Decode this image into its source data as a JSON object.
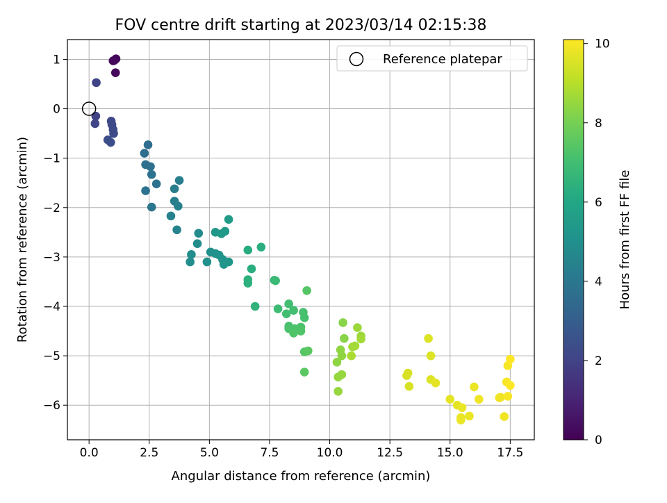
{
  "chart_data": {
    "type": "scatter",
    "title": "FOV centre drift starting at 2023/03/14 02:15:38",
    "xlabel": "Angular distance from reference (arcmin)",
    "ylabel": "Rotation from reference (arcmin)",
    "xlim": [
      -0.9,
      18.5
    ],
    "ylim": [
      -6.7,
      1.4
    ],
    "xticks": [
      0.0,
      2.5,
      5.0,
      7.5,
      10.0,
      12.5,
      15.0,
      17.5
    ],
    "xtick_labels": [
      "0.0",
      "2.5",
      "5.0",
      "7.5",
      "10.0",
      "12.5",
      "15.0",
      "17.5"
    ],
    "yticks": [
      1,
      0,
      -1,
      -2,
      -3,
      -4,
      -5,
      -6
    ],
    "ytick_labels": [
      "1",
      "0",
      "−1",
      "−2",
      "−3",
      "−4",
      "−5",
      "−6"
    ],
    "grid": true,
    "legend": {
      "placement": "top-right",
      "entries": [
        "Reference platepar"
      ]
    },
    "reference_point": {
      "x": 0,
      "y": 0,
      "label": "Reference platepar"
    },
    "colorbar": {
      "label": "Hours from first FF file",
      "colormap": "viridis",
      "range": [
        0,
        10.1
      ],
      "ticks": [
        0,
        2,
        4,
        6,
        8,
        10
      ],
      "tick_labels": [
        "0",
        "2",
        "4",
        "6",
        "8",
        "10"
      ]
    },
    "points": [
      {
        "x": 1.05,
        "y": 0.98,
        "h": 0.1
      },
      {
        "x": 1.12,
        "y": 1.01,
        "h": 0.15
      },
      {
        "x": 1.1,
        "y": 0.73,
        "h": 0.25
      },
      {
        "x": 1.0,
        "y": 0.97,
        "h": 0.2
      },
      {
        "x": 0.3,
        "y": 0.53,
        "h": 2.0
      },
      {
        "x": 0.28,
        "y": -0.15,
        "h": 2.0
      },
      {
        "x": 0.25,
        "y": -0.3,
        "h": 2.1
      },
      {
        "x": 0.92,
        "y": -0.25,
        "h": 2.2
      },
      {
        "x": 0.95,
        "y": -0.32,
        "h": 2.2
      },
      {
        "x": 1.0,
        "y": -0.42,
        "h": 2.3
      },
      {
        "x": 1.02,
        "y": -0.5,
        "h": 2.3
      },
      {
        "x": 0.78,
        "y": -0.63,
        "h": 2.4
      },
      {
        "x": 0.9,
        "y": -0.68,
        "h": 2.4
      },
      {
        "x": 2.45,
        "y": -0.73,
        "h": 3.6
      },
      {
        "x": 2.3,
        "y": -0.9,
        "h": 3.6
      },
      {
        "x": 2.35,
        "y": -1.13,
        "h": 3.7
      },
      {
        "x": 2.55,
        "y": -1.17,
        "h": 3.7
      },
      {
        "x": 2.6,
        "y": -1.33,
        "h": 3.8
      },
      {
        "x": 2.8,
        "y": -1.52,
        "h": 3.8
      },
      {
        "x": 2.35,
        "y": -1.66,
        "h": 3.8
      },
      {
        "x": 2.6,
        "y": -1.99,
        "h": 3.9
      },
      {
        "x": 3.75,
        "y": -1.45,
        "h": 4.3
      },
      {
        "x": 3.55,
        "y": -1.62,
        "h": 4.3
      },
      {
        "x": 3.55,
        "y": -1.87,
        "h": 4.3
      },
      {
        "x": 3.7,
        "y": -1.97,
        "h": 4.4
      },
      {
        "x": 3.4,
        "y": -2.17,
        "h": 4.4
      },
      {
        "x": 3.65,
        "y": -2.45,
        "h": 4.5
      },
      {
        "x": 4.55,
        "y": -2.52,
        "h": 4.8
      },
      {
        "x": 4.5,
        "y": -2.73,
        "h": 4.8
      },
      {
        "x": 4.25,
        "y": -2.95,
        "h": 4.9
      },
      {
        "x": 4.2,
        "y": -3.1,
        "h": 4.9
      },
      {
        "x": 4.9,
        "y": -3.1,
        "h": 5.0
      },
      {
        "x": 5.05,
        "y": -2.9,
        "h": 5.0
      },
      {
        "x": 5.25,
        "y": -2.93,
        "h": 5.1
      },
      {
        "x": 5.4,
        "y": -2.96,
        "h": 5.1
      },
      {
        "x": 5.55,
        "y": -3.05,
        "h": 5.2
      },
      {
        "x": 5.6,
        "y": -3.15,
        "h": 5.2
      },
      {
        "x": 5.8,
        "y": -3.1,
        "h": 5.3
      },
      {
        "x": 5.25,
        "y": -2.5,
        "h": 5.3
      },
      {
        "x": 5.5,
        "y": -2.53,
        "h": 5.4
      },
      {
        "x": 5.65,
        "y": -2.48,
        "h": 5.4
      },
      {
        "x": 5.8,
        "y": -2.24,
        "h": 5.5
      },
      {
        "x": 6.6,
        "y": -2.86,
        "h": 6.2
      },
      {
        "x": 7.15,
        "y": -2.8,
        "h": 6.3
      },
      {
        "x": 6.75,
        "y": -3.24,
        "h": 6.3
      },
      {
        "x": 6.6,
        "y": -3.46,
        "h": 6.4
      },
      {
        "x": 6.6,
        "y": -3.53,
        "h": 6.4
      },
      {
        "x": 6.9,
        "y": -4.0,
        "h": 6.5
      },
      {
        "x": 7.7,
        "y": -3.47,
        "h": 6.8
      },
      {
        "x": 7.75,
        "y": -3.48,
        "h": 6.8
      },
      {
        "x": 7.85,
        "y": -4.05,
        "h": 6.9
      },
      {
        "x": 8.3,
        "y": -3.95,
        "h": 7.0
      },
      {
        "x": 8.5,
        "y": -4.08,
        "h": 7.0
      },
      {
        "x": 8.2,
        "y": -4.15,
        "h": 7.0
      },
      {
        "x": 8.9,
        "y": -4.12,
        "h": 7.1
      },
      {
        "x": 8.95,
        "y": -4.23,
        "h": 7.1
      },
      {
        "x": 8.3,
        "y": -4.4,
        "h": 7.1
      },
      {
        "x": 8.3,
        "y": -4.45,
        "h": 7.2
      },
      {
        "x": 8.55,
        "y": -4.45,
        "h": 7.2
      },
      {
        "x": 8.8,
        "y": -4.42,
        "h": 7.2
      },
      {
        "x": 8.8,
        "y": -4.5,
        "h": 7.3
      },
      {
        "x": 8.5,
        "y": -4.54,
        "h": 7.3
      },
      {
        "x": 9.05,
        "y": -3.68,
        "h": 7.4
      },
      {
        "x": 8.95,
        "y": -4.92,
        "h": 7.4
      },
      {
        "x": 9.1,
        "y": -4.9,
        "h": 7.5
      },
      {
        "x": 8.95,
        "y": -5.33,
        "h": 7.5
      },
      {
        "x": 10.55,
        "y": -4.33,
        "h": 8.3
      },
      {
        "x": 10.6,
        "y": -4.65,
        "h": 8.3
      },
      {
        "x": 10.45,
        "y": -4.88,
        "h": 8.4
      },
      {
        "x": 10.5,
        "y": -5.0,
        "h": 8.4
      },
      {
        "x": 10.3,
        "y": -5.13,
        "h": 8.4
      },
      {
        "x": 10.5,
        "y": -5.38,
        "h": 8.5
      },
      {
        "x": 10.35,
        "y": -5.43,
        "h": 8.5
      },
      {
        "x": 10.35,
        "y": -5.72,
        "h": 8.5
      },
      {
        "x": 11.15,
        "y": -4.43,
        "h": 8.6
      },
      {
        "x": 11.3,
        "y": -4.6,
        "h": 8.6
      },
      {
        "x": 11.3,
        "y": -4.66,
        "h": 8.7
      },
      {
        "x": 11.05,
        "y": -4.8,
        "h": 8.7
      },
      {
        "x": 10.95,
        "y": -4.82,
        "h": 8.7
      },
      {
        "x": 10.9,
        "y": -5.0,
        "h": 8.8
      },
      {
        "x": 13.25,
        "y": -5.35,
        "h": 9.5
      },
      {
        "x": 13.2,
        "y": -5.4,
        "h": 9.5
      },
      {
        "x": 13.3,
        "y": -5.62,
        "h": 9.5
      },
      {
        "x": 14.1,
        "y": -4.65,
        "h": 9.6
      },
      {
        "x": 14.2,
        "y": -5.0,
        "h": 9.6
      },
      {
        "x": 14.2,
        "y": -5.48,
        "h": 9.6
      },
      {
        "x": 14.4,
        "y": -5.55,
        "h": 9.7
      },
      {
        "x": 15.0,
        "y": -5.88,
        "h": 9.7
      },
      {
        "x": 15.3,
        "y": -6.0,
        "h": 9.7
      },
      {
        "x": 15.5,
        "y": -6.05,
        "h": 9.8
      },
      {
        "x": 15.45,
        "y": -6.25,
        "h": 9.8
      },
      {
        "x": 15.45,
        "y": -6.3,
        "h": 9.8
      },
      {
        "x": 15.8,
        "y": -6.22,
        "h": 9.8
      },
      {
        "x": 16.0,
        "y": -5.63,
        "h": 9.8
      },
      {
        "x": 16.2,
        "y": -5.88,
        "h": 9.9
      },
      {
        "x": 17.05,
        "y": -5.85,
        "h": 9.9
      },
      {
        "x": 17.1,
        "y": -5.84,
        "h": 9.9
      },
      {
        "x": 17.25,
        "y": -6.23,
        "h": 9.9
      },
      {
        "x": 17.35,
        "y": -5.53,
        "h": 10.0
      },
      {
        "x": 17.4,
        "y": -5.82,
        "h": 10.0
      },
      {
        "x": 17.4,
        "y": -5.2,
        "h": 10.0
      },
      {
        "x": 17.5,
        "y": -5.07,
        "h": 10.1
      },
      {
        "x": 17.5,
        "y": -5.6,
        "h": 10.1
      }
    ]
  }
}
